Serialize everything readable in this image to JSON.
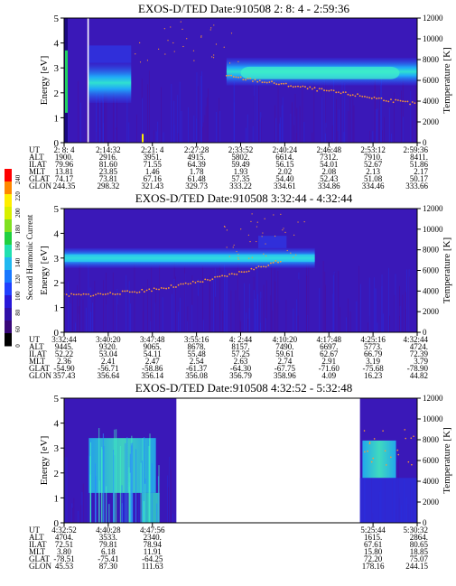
{
  "colorbar": {
    "label": "Second Harmonic Current",
    "ticks": [
      "240",
      "220",
      "200",
      "180",
      "160",
      "140",
      "120",
      "100",
      "80",
      "60",
      "0"
    ],
    "colors": [
      "#ff0000",
      "#ff8800",
      "#ffee00",
      "#d8f000",
      "#80e020",
      "#20d040",
      "#20e0b0",
      "#20b8f0",
      "#1878ff",
      "#2040ff",
      "#2818d8",
      "#3010a8",
      "#380878",
      "#000000"
    ]
  },
  "chart_data": [
    {
      "type": "heatmap",
      "title": "EXOS-D/TED   Date:910508  2: 8: 4 - 2:59:36",
      "ylabel": "Energy [eV]",
      "ylabel_right": "Temperature [K]",
      "ylim": [
        0,
        5
      ],
      "ylim_right": [
        0,
        12000
      ],
      "yticks": [
        "0",
        "1",
        "2",
        "3",
        "4",
        "5"
      ],
      "yticks_right": [
        "0",
        "2000",
        "4000",
        "6000",
        "8000",
        "10000",
        "12000"
      ],
      "orbit_rows": [
        "UT",
        "ALT",
        "ILAT",
        "MLT",
        "GLAT",
        "GLON"
      ],
      "columns": [
        [
          "2: 8: 4",
          "1900.",
          "79.96",
          "13.81",
          "74.17",
          "244.35"
        ],
        [
          "2:14:32",
          "2916.",
          "81.60",
          "23.85",
          "73.81",
          "298.32"
        ],
        [
          "2:21: 4",
          "3951.",
          "71.55",
          "1.46",
          "67.16",
          "321.43"
        ],
        [
          "2:27:28",
          "4915.",
          "64.39",
          "1.78",
          "61.48",
          "329.73"
        ],
        [
          "2:33:52",
          "5802.",
          "59.49",
          "1.93",
          "57.35",
          "333.22"
        ],
        [
          "2:40:24",
          "6614.",
          "56.15",
          "2.02",
          "54.40",
          "334.61"
        ],
        [
          "2:46:48",
          "7312.",
          "54.01",
          "2.08",
          "52.43",
          "334.86"
        ],
        [
          "2:53:12",
          "7910.",
          "52.67",
          "2.13",
          "51.08",
          "334.46"
        ],
        [
          "2:59:36",
          "8411.",
          "51.86",
          "2.17",
          "50.17",
          "333.66"
        ]
      ]
    },
    {
      "type": "heatmap",
      "title": "EXOS-D/TED   Date:910508  3:32:44 - 4:32:44",
      "ylabel": "Energy [eV]",
      "ylabel_right": "Temperature [K]",
      "ylim": [
        0,
        5
      ],
      "ylim_right": [
        0,
        12000
      ],
      "yticks": [
        "0",
        "1",
        "2",
        "3",
        "4",
        "5"
      ],
      "yticks_right": [
        "0",
        "2000",
        "4000",
        "6000",
        "8000",
        "10000",
        "12000"
      ],
      "orbit_rows": [
        "UT",
        "ALT",
        "ILAT",
        "MLT",
        "GLAT",
        "GLON"
      ],
      "columns": [
        [
          "3:32:44",
          "9445.",
          "52.22",
          "2.36",
          "-54.90",
          "357.43"
        ],
        [
          "3:40:20",
          "9320.",
          "53.04",
          "2.41",
          "-56.71",
          "356.64"
        ],
        [
          "3:47:48",
          "9065.",
          "54.11",
          "2.47",
          "-58.86",
          "356.14"
        ],
        [
          "3:55:16",
          "8678.",
          "55.48",
          "2.54",
          "-61.37",
          "356.08"
        ],
        [
          "4: 2:44",
          "8157.",
          "57.25",
          "2.63",
          "-64.30",
          "356.79"
        ],
        [
          "4:10:20",
          "7490.",
          "59.61",
          "2.74",
          "-67.75",
          "358.96"
        ],
        [
          "4:17:48",
          "6697.",
          "62.67",
          "2.91",
          "-71.60",
          "4.09"
        ],
        [
          "4:25:16",
          "5773.",
          "66.79",
          "3.19",
          "-75.68",
          "16.23"
        ],
        [
          "4:32:44",
          "4724.",
          "72.39",
          "3.79",
          "-78.90",
          "44.82"
        ]
      ]
    },
    {
      "type": "heatmap",
      "title": "EXOS-D/TED   Date:910508  4:32:52 - 5:32:48",
      "ylabel": "Energy [eV]",
      "ylabel_right": "Temperature [K]",
      "ylim": [
        0,
        5
      ],
      "ylim_right": [
        0,
        12000
      ],
      "yticks": [
        "0",
        "1",
        "2",
        "3",
        "4",
        "5"
      ],
      "yticks_right": [
        "0",
        "2000",
        "4000",
        "6000",
        "8000",
        "10000",
        "12000"
      ],
      "orbit_rows": [
        "UT",
        "ALT",
        "ILAT",
        "MLT",
        "GLAT",
        "GLON"
      ],
      "columns": [
        [
          "4:32:52",
          "4704.",
          "72.51",
          "3.80",
          "-78.51",
          "45.53"
        ],
        [
          "4:40:28",
          "3533.",
          "79.81",
          "6.18",
          "-75.41",
          "87.30"
        ],
        [
          "4:47:56",
          "2340.",
          "78.94",
          "11.91",
          "-64.25",
          "111.63"
        ],
        [
          "",
          "",
          "",
          "",
          "",
          ""
        ],
        [
          "",
          "",
          "",
          "",
          "",
          ""
        ],
        [
          "",
          "",
          "",
          "",
          "",
          ""
        ],
        [
          "",
          "",
          "",
          "",
          "",
          ""
        ],
        [
          "5:25:44",
          "1615.",
          "67.61",
          "15.80",
          "72.20",
          "178.16"
        ],
        [
          "5:30:32",
          "2864.",
          "80.65",
          "18.85",
          "75.07",
          "244.15"
        ]
      ]
    }
  ]
}
